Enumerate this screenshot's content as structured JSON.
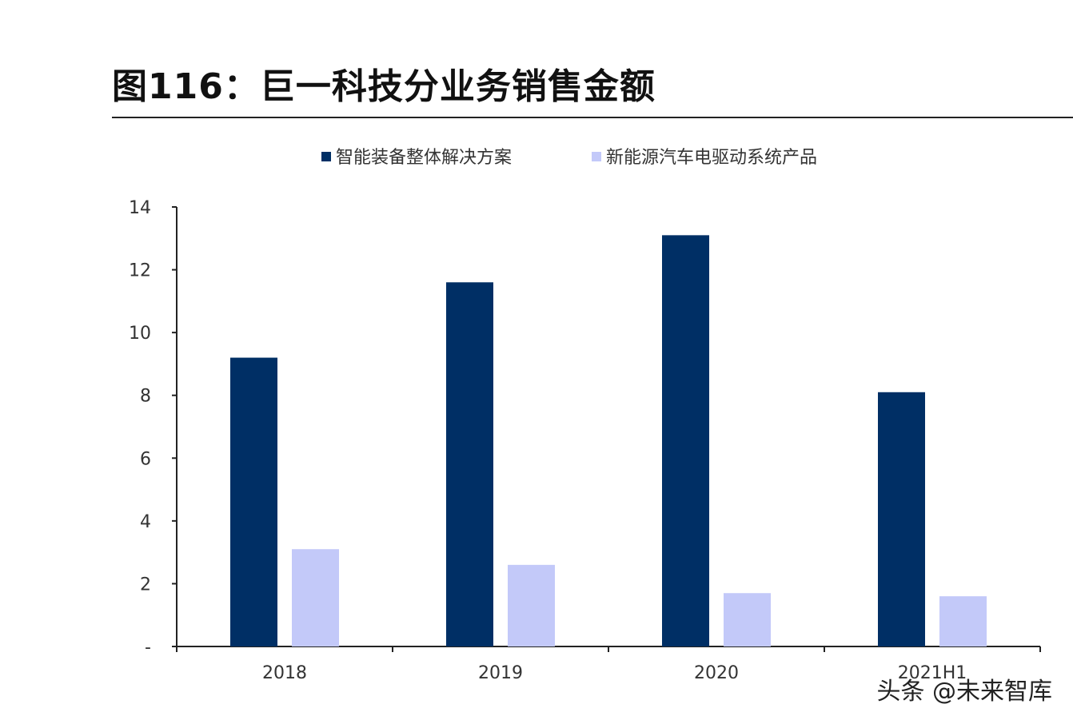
{
  "title": "图116：巨一科技分业务销售金额",
  "colors": {
    "series_1": "#002f65",
    "series_2": "#c3c9f9",
    "axis": "#222222"
  },
  "watermark": "头条 @未来智库",
  "chart_data": {
    "type": "bar",
    "title": "图116：巨一科技分业务销售金额",
    "xlabel": "",
    "ylabel": "",
    "categories": [
      "2018",
      "2019",
      "2020",
      "2021H1"
    ],
    "series": [
      {
        "name": "智能装备整体解决方案",
        "values": [
          9.2,
          11.6,
          13.1,
          8.1
        ]
      },
      {
        "name": "新能源汽车电驱动系统产品",
        "values": [
          3.1,
          2.6,
          1.7,
          1.6
        ]
      }
    ],
    "ylim": [
      0,
      14
    ],
    "yticks": [
      0,
      2,
      4,
      6,
      8,
      10,
      12,
      14
    ],
    "ytick_labels": [
      "-",
      "2",
      "4",
      "6",
      "8",
      "10",
      "12",
      "14"
    ],
    "legend_position": "top-center",
    "grid": false
  }
}
